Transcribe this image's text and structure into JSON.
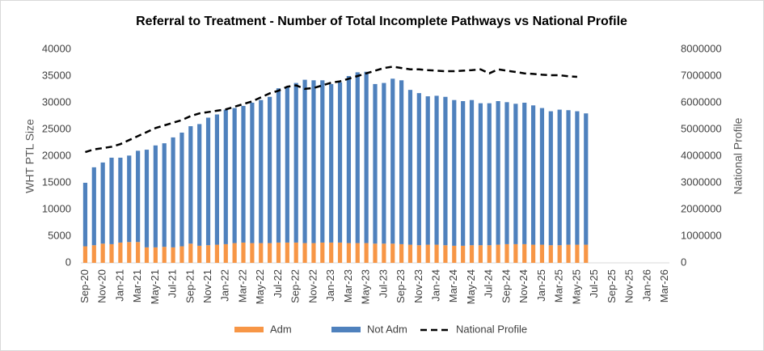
{
  "chart_data": {
    "type": "bar",
    "title": "Referral to Treatment - Number of Total Incomplete Pathways vs National Profile",
    "y_label": "WHT PTL Size",
    "y2_label": "National Profile",
    "stacked": true,
    "grid": false,
    "legend": "bottom",
    "categories": [
      "Sep-20",
      null,
      "Nov-20",
      null,
      "Jan-21",
      null,
      "Mar-21",
      null,
      "May-21",
      null,
      "Jul-21",
      null,
      "Sep-21",
      null,
      "Nov-21",
      null,
      "Jan-22",
      null,
      "Mar-22",
      null,
      "May-22",
      null,
      "Jul-22",
      null,
      "Sep-22",
      null,
      "Nov-22",
      null,
      "Jan-23",
      null,
      "Mar-23",
      null,
      "May-23",
      null,
      "Jul-23",
      null,
      "Sep-23",
      null,
      "Nov-23",
      null,
      "Jan-24",
      null,
      "Mar-24",
      null,
      "May-24",
      null,
      "Jul-24",
      null,
      "Sep-24",
      null,
      "Nov-24",
      null,
      "Jan-25",
      null,
      "Mar-25",
      null,
      "May-25",
      null,
      "Jul-25",
      null,
      "Sep-25",
      null,
      "Nov-25",
      null,
      "Jan-26",
      null,
      "Mar-26"
    ],
    "series": [
      {
        "name": "Adm",
        "color": "#f79646",
        "values": [
          3100,
          3300,
          3600,
          3500,
          3800,
          3900,
          3900,
          2900,
          2900,
          3000,
          2900,
          3100,
          3600,
          3200,
          3300,
          3400,
          3500,
          3700,
          3800,
          3700,
          3700,
          3700,
          3800,
          3800,
          3800,
          3700,
          3700,
          3800,
          3800,
          3800,
          3700,
          3700,
          3700,
          3600,
          3600,
          3600,
          3500,
          3400,
          3300,
          3400,
          3400,
          3300,
          3200,
          3200,
          3300,
          3300,
          3300,
          3400,
          3500,
          3500,
          3500,
          3400,
          3400,
          3300,
          3300,
          3400,
          3400,
          3400,
          null,
          null,
          null,
          null,
          null,
          null,
          null,
          null,
          null
        ]
      },
      {
        "name": "Not Adm",
        "color": "#4f81bd",
        "values": [
          11900,
          14600,
          15200,
          16200,
          15900,
          16200,
          17100,
          18300,
          19100,
          19400,
          20600,
          21300,
          22000,
          22800,
          23900,
          24400,
          25200,
          25300,
          25600,
          26300,
          26800,
          27400,
          28900,
          29200,
          29900,
          30600,
          30500,
          30400,
          29700,
          30000,
          31300,
          32000,
          32100,
          29900,
          30100,
          30900,
          30700,
          29000,
          28500,
          27800,
          27900,
          27800,
          27300,
          27100,
          27200,
          26600,
          26600,
          26900,
          26600,
          26300,
          26500,
          26100,
          25600,
          25100,
          25400,
          25200,
          25000,
          24600,
          null,
          null,
          null,
          null,
          null,
          null,
          null,
          null,
          null
        ]
      },
      {
        "name": "National Profile",
        "type": "line",
        "axis": "y2",
        "color": "#000000",
        "dashed": true,
        "values": [
          4150000,
          4250000,
          4300000,
          4350000,
          4450000,
          4600000,
          4750000,
          4900000,
          5050000,
          5150000,
          5250000,
          5350000,
          5500000,
          5600000,
          5650000,
          5700000,
          5750000,
          5850000,
          5950000,
          6050000,
          6200000,
          6350000,
          6450000,
          6600000,
          6650000,
          6520000,
          6550000,
          6650000,
          6750000,
          6800000,
          6900000,
          7000000,
          7100000,
          7200000,
          7300000,
          7350000,
          7300000,
          7250000,
          7250000,
          7220000,
          7200000,
          7180000,
          7180000,
          7200000,
          7220000,
          7250000,
          7100000,
          7250000,
          7200000,
          7150000,
          7100000,
          7080000,
          7050000,
          7030000,
          7030000,
          6990000,
          6970000,
          null,
          null,
          null,
          null,
          null,
          null,
          null,
          null,
          null,
          null
        ]
      }
    ],
    "ylim": [
      0,
      40000
    ],
    "yticks": [
      0,
      5000,
      10000,
      15000,
      20000,
      25000,
      30000,
      35000,
      40000
    ],
    "y2lim": [
      0,
      8000000
    ],
    "y2ticks": [
      0,
      1000000,
      2000000,
      3000000,
      4000000,
      5000000,
      6000000,
      7000000,
      8000000
    ]
  }
}
